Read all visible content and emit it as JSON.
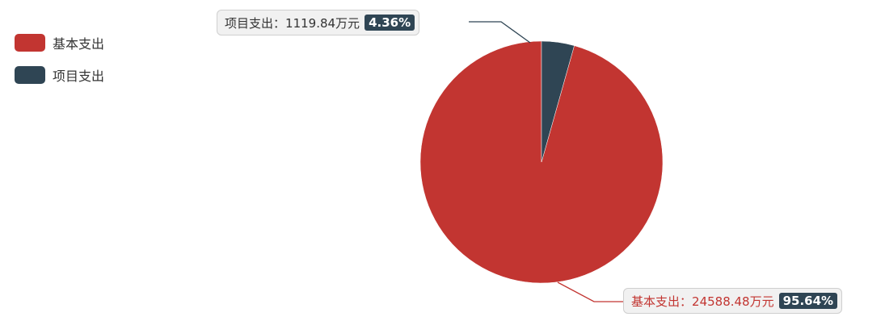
{
  "legend": {
    "items": [
      {
        "label": "基本支出",
        "color": "#c23531"
      },
      {
        "label": "项目支出",
        "color": "#2f4554"
      }
    ]
  },
  "labels": {
    "project": {
      "name": "项目支出",
      "sep": "：",
      "value": "1119.84万元",
      "percent": "4.36%"
    },
    "basic": {
      "name": "基本支出",
      "sep": "：",
      "value": "24588.48万元",
      "percent": "95.64%"
    }
  },
  "chart_data": {
    "type": "pie",
    "categories": [
      "基本支出",
      "项目支出"
    ],
    "values": [
      24588.48,
      1119.84
    ],
    "unit": "万元",
    "percentages": [
      95.64,
      4.36
    ],
    "colors": [
      "#c23531",
      "#2f4554"
    ],
    "legend_position": "top-left",
    "title": ""
  }
}
